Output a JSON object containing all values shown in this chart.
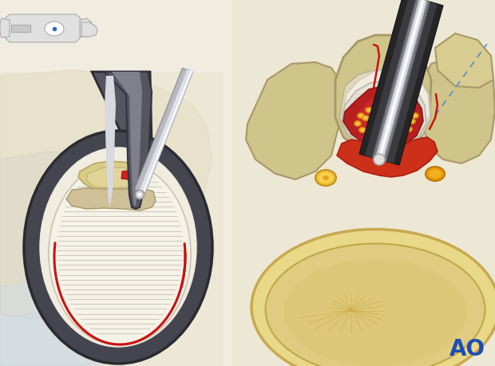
{
  "bg_color": "#f0ece0",
  "ao_text": "AO",
  "ao_color": "#1a4db5",
  "left_bg": "#ede8d8",
  "right_bg": "#ede8d8",
  "tube_outer": "#555560",
  "tube_inner": "#3a3a42",
  "bone_fill": "#d4c98a",
  "bone_edge": "#b0a060",
  "dura_fill": "#f0ede0",
  "dura_lines": "#c8c4b0",
  "ligament_fill": "#d4c878",
  "red_line": "#cc1111",
  "instrument_dark": "#333340",
  "instrument_gray": "#c0c0cc",
  "instrument_white": "#e8e8f0",
  "nerve_yellow": "#f0c030",
  "nerve_edge": "#c09020",
  "epidural_red": "#cc2020",
  "disc_fill": "#e8d890",
  "disc_edge": "#c8b870",
  "blue_dot": "#3366cc",
  "inset_fill": "#e0e0e0",
  "inset_edge": "#aaaaaa",
  "tissue_bg": "#e8e2d0"
}
